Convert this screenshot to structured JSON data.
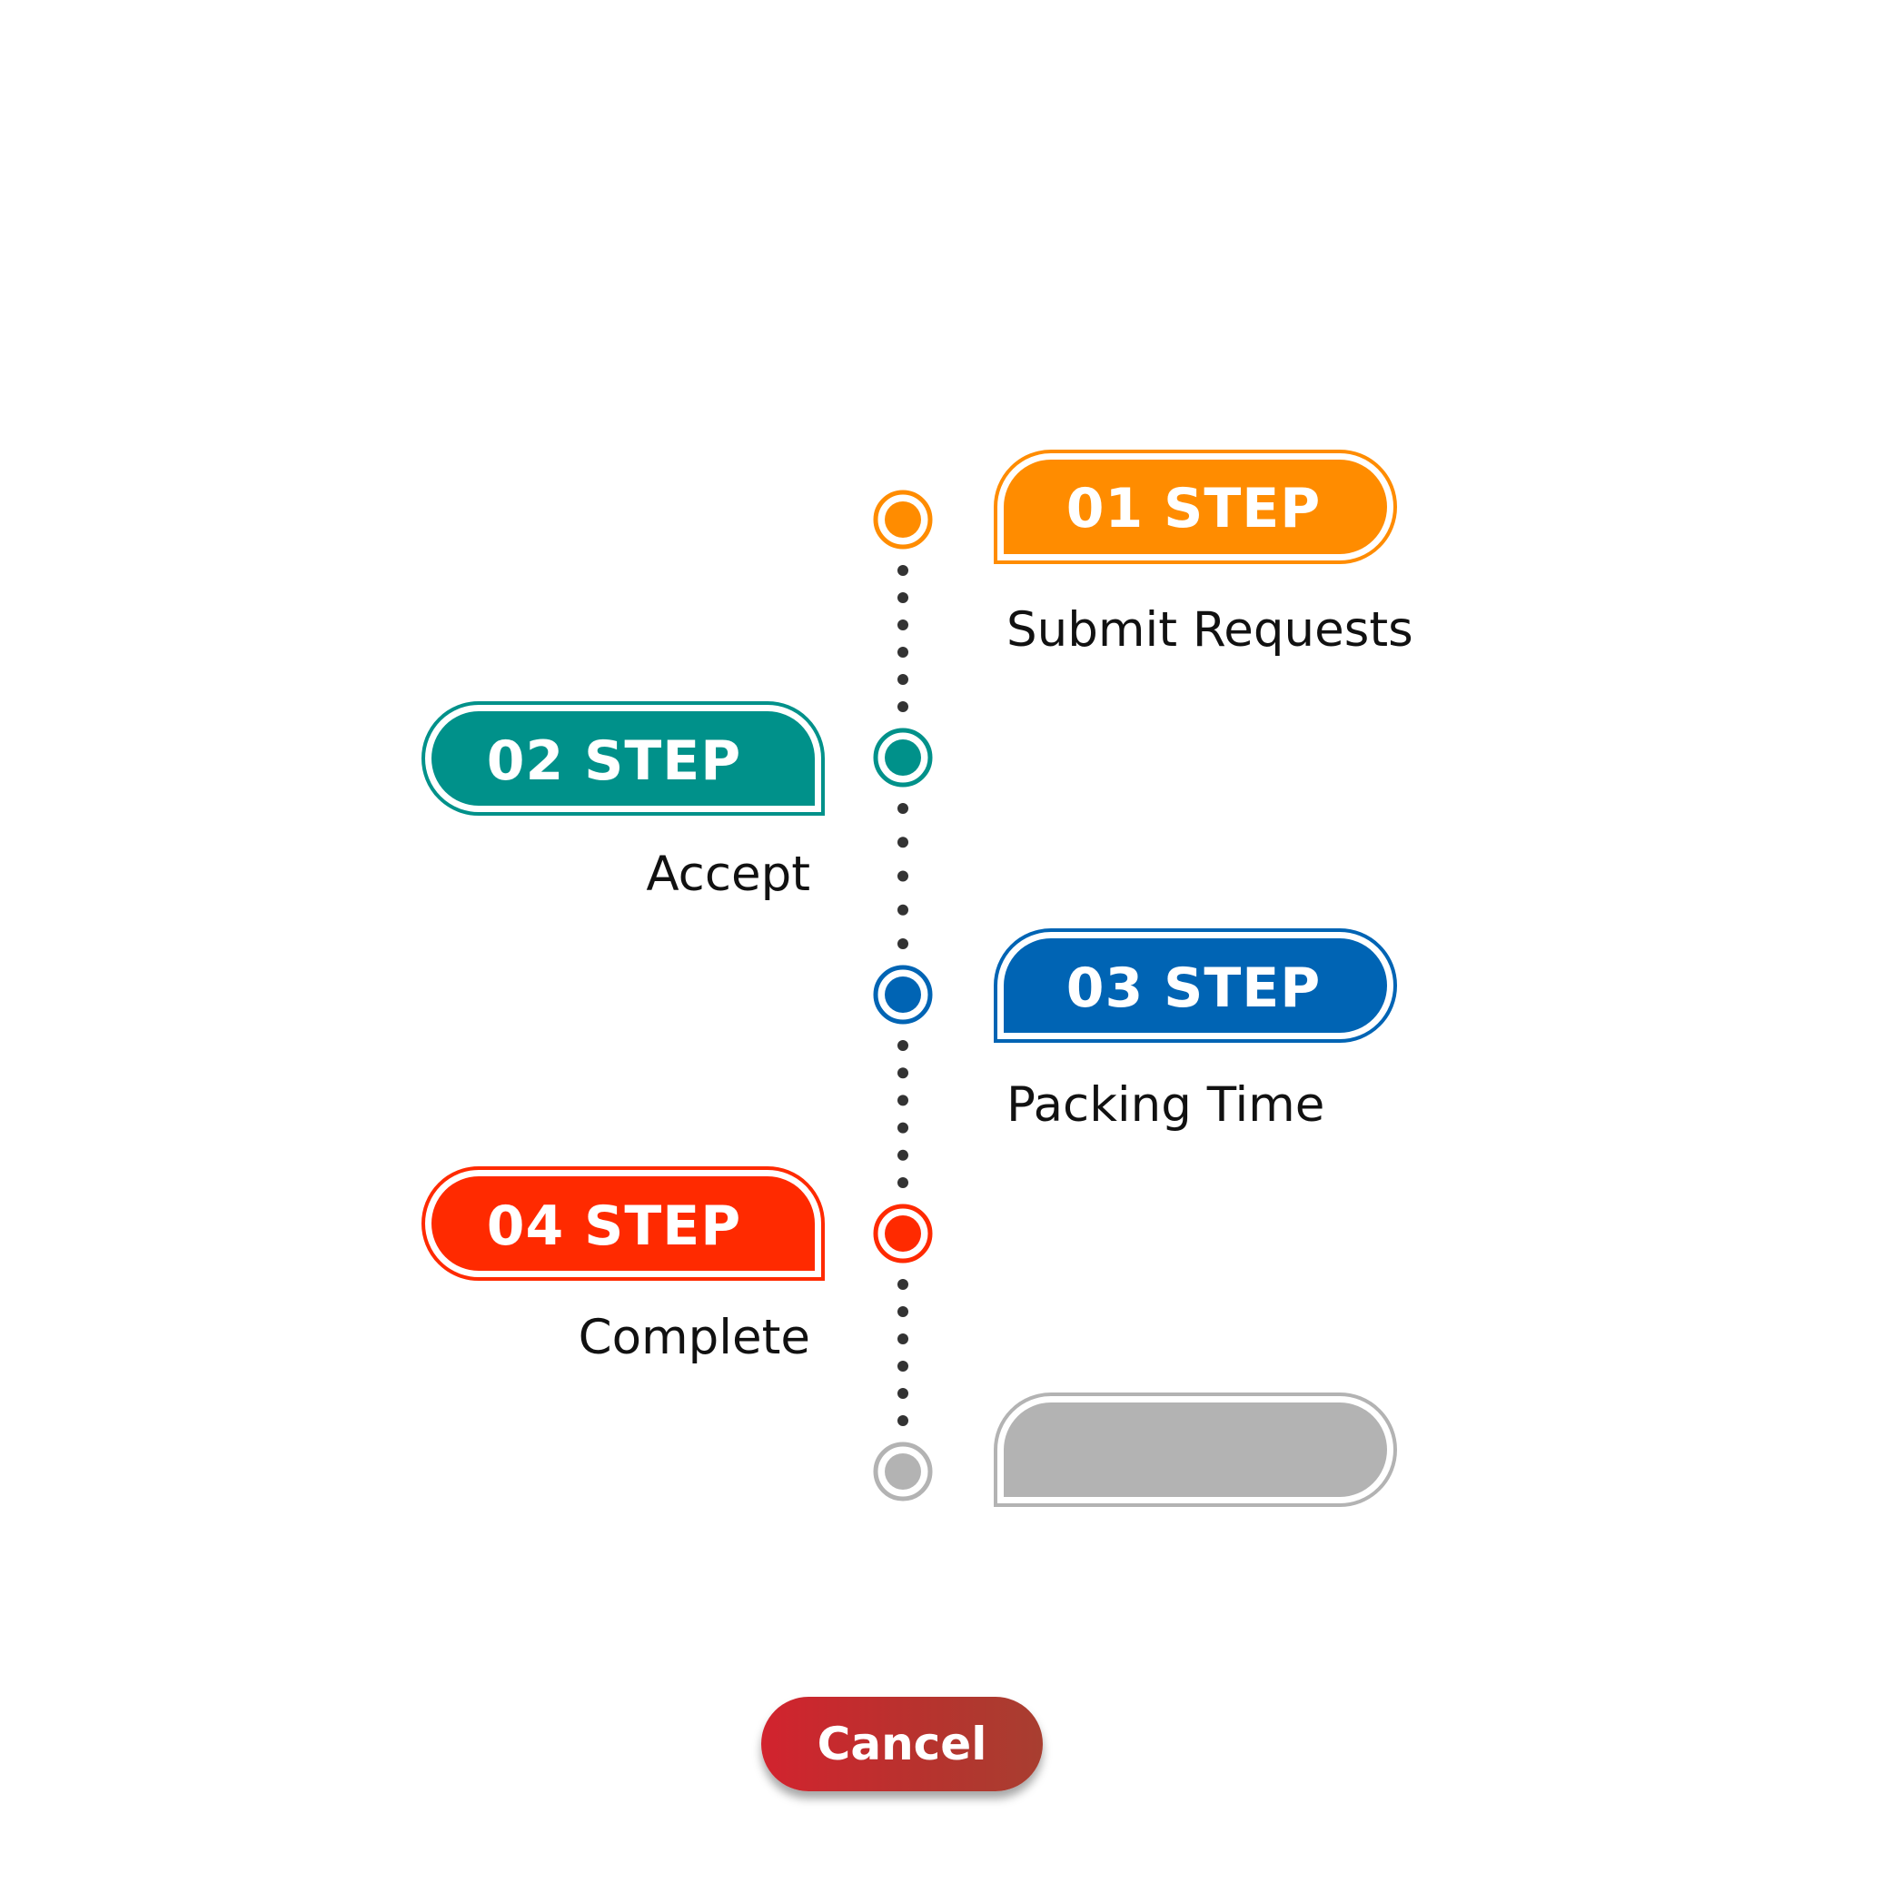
{
  "steps": [
    {
      "label": "01 STEP",
      "description": "Submit Requests",
      "color": "#ff8c00",
      "status": "active"
    },
    {
      "label": "02 STEP",
      "description": "Accept",
      "color": "#00918a",
      "status": "active"
    },
    {
      "label": "03 STEP",
      "description": "Packing Time",
      "color": "#0064b4",
      "status": "active"
    },
    {
      "label": "04 STEP",
      "description": "Complete",
      "color": "#ff2a00",
      "status": "active"
    },
    {
      "label": "",
      "description": "",
      "color": "#b3b3b3",
      "status": "inactive"
    }
  ],
  "connector_color": "#333333",
  "cancel": {
    "label": "Cancel",
    "color": "#c52a2e"
  }
}
